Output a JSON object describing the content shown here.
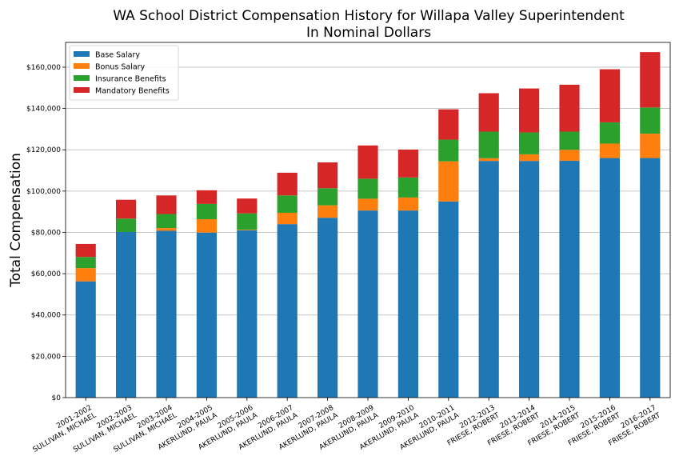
{
  "chart_data": {
    "type": "bar",
    "stacked": true,
    "title": "WA School District Compensation History for Willapa Valley Superintendent",
    "subtitle": "In Nominal Dollars",
    "xlabel": "",
    "ylabel": "Total Compensation",
    "ylim": [
      0,
      172000
    ],
    "yticks": [
      0,
      20000,
      40000,
      60000,
      80000,
      100000,
      120000,
      140000,
      160000
    ],
    "ytick_labels": [
      "$0",
      "$20,000",
      "$40,000",
      "$60,000",
      "$80,000",
      "$100,000",
      "$120,000",
      "$140,000",
      "$160,000"
    ],
    "grid": "horizontal",
    "legend_position": "top-left",
    "categories": [
      [
        "2001-2002",
        "SULLIVAN, MICHAEL"
      ],
      [
        "2002-2003",
        "SULLIVAN, MICHAEL"
      ],
      [
        "2003-2004",
        "SULLIVAN, MICHAEL"
      ],
      [
        "2004-2005",
        "AKERLUND, PAULA"
      ],
      [
        "2005-2006",
        "AKERLUND, PAULA"
      ],
      [
        "2006-2007",
        "AKERLUND, PAULA"
      ],
      [
        "2007-2008",
        "AKERLUND, PAULA"
      ],
      [
        "2008-2009",
        "AKERLUND, PAULA"
      ],
      [
        "2009-2010",
        "AKERLUND, PAULA"
      ],
      [
        "2010-2011",
        "AKERLUND, PAULA"
      ],
      [
        "2012-2013",
        "FRIESE, ROBERT"
      ],
      [
        "2013-2014",
        "FRIESE, ROBERT"
      ],
      [
        "2014-2015",
        "FRIESE, ROBERT"
      ],
      [
        "2015-2016",
        "FRIESE, ROBERT"
      ],
      [
        "2016-2017",
        "FRIESE, ROBERT"
      ]
    ],
    "series": [
      {
        "name": "Base Salary",
        "color": "#1f77b4",
        "values": [
          56300,
          80200,
          80800,
          79900,
          81000,
          84000,
          87100,
          90600,
          90600,
          95000,
          114600,
          114600,
          114700,
          116000,
          116000
        ]
      },
      {
        "name": "Bonus Salary",
        "color": "#ff7f0e",
        "values": [
          6400,
          0,
          1300,
          6500,
          300,
          5500,
          6000,
          5700,
          6300,
          19400,
          1300,
          3200,
          5300,
          7000,
          11800
        ]
      },
      {
        "name": "Insurance Benefits",
        "color": "#2ca02c",
        "values": [
          5400,
          6500,
          6800,
          7400,
          7900,
          8400,
          8300,
          9700,
          9700,
          10500,
          12900,
          10600,
          8800,
          10300,
          12700
        ]
      },
      {
        "name": "Mandatory Benefits",
        "color": "#d62728",
        "values": [
          6300,
          9100,
          9000,
          6600,
          7200,
          11000,
          12500,
          16100,
          13500,
          14700,
          18600,
          21300,
          22700,
          25700,
          26800
        ]
      }
    ]
  }
}
